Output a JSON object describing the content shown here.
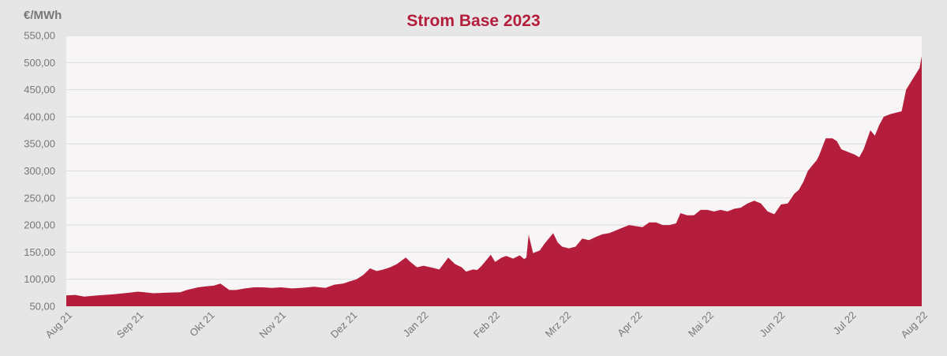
{
  "chart_data": {
    "type": "area",
    "title": "Strom Base 2023",
    "ylabel": "€/MWh",
    "ylim": [
      50,
      550
    ],
    "yticks": [
      50,
      100,
      150,
      200,
      250,
      300,
      350,
      400,
      450,
      500,
      550
    ],
    "ytick_labels": [
      "50,00",
      "100,00",
      "150,00",
      "200,00",
      "250,00",
      "300,00",
      "350,00",
      "400,00",
      "450,00",
      "500,00",
      "550,00"
    ],
    "xticks": [
      "Aug 21",
      "Sep 21",
      "Okt 21",
      "Nov 21",
      "Dez 21",
      "Jan 22",
      "Feb 22",
      "Mrz 22",
      "Apr 22",
      "Mai 22",
      "Jun 22",
      "Jul 22",
      "Aug 22"
    ],
    "grid": true,
    "colors": {
      "fill": "#b41e3c",
      "plot_bg": "#f7f5f6",
      "page_bg": "#e6e6e6",
      "grid": "#dddddd"
    },
    "series": [
      {
        "x": [
          "2021-08-01",
          "2021-08-05",
          "2021-08-09",
          "2021-08-15",
          "2021-08-22",
          "2021-08-29",
          "2021-09-02",
          "2021-09-05",
          "2021-09-09",
          "2021-09-14",
          "2021-09-21",
          "2021-09-24",
          "2021-09-29",
          "2021-10-03",
          "2021-10-06",
          "2021-10-09",
          "2021-10-13",
          "2021-10-16",
          "2021-10-20",
          "2021-10-24",
          "2021-10-28",
          "2021-11-01",
          "2021-11-05",
          "2021-11-10",
          "2021-11-14",
          "2021-11-20",
          "2021-11-25",
          "2021-11-29",
          "2021-12-03",
          "2021-12-06",
          "2021-12-09",
          "2021-12-12",
          "2021-12-15",
          "2021-12-18",
          "2021-12-21",
          "2021-12-24",
          "2021-12-27",
          "2021-12-31",
          "2022-01-02",
          "2022-01-05",
          "2022-01-08",
          "2022-01-12",
          "2022-01-15",
          "2022-01-19",
          "2022-01-22",
          "2022-01-25",
          "2022-01-27",
          "2022-01-30",
          "2022-02-01",
          "2022-02-03",
          "2022-02-05",
          "2022-02-07",
          "2022-02-09",
          "2022-02-12",
          "2022-02-14",
          "2022-02-17",
          "2022-02-20",
          "2022-02-22",
          "2022-02-23",
          "2022-02-24",
          "2022-02-26",
          "2022-03-01",
          "2022-03-03",
          "2022-03-05",
          "2022-03-07",
          "2022-03-09",
          "2022-03-11",
          "2022-03-14",
          "2022-03-17",
          "2022-03-20",
          "2022-03-23",
          "2022-03-26",
          "2022-03-29",
          "2022-04-01",
          "2022-04-04",
          "2022-04-07",
          "2022-04-10",
          "2022-04-13",
          "2022-04-16",
          "2022-04-19",
          "2022-04-22",
          "2022-04-25",
          "2022-04-28",
          "2022-05-01",
          "2022-05-03",
          "2022-05-06",
          "2022-05-09",
          "2022-05-12",
          "2022-05-15",
          "2022-05-18",
          "2022-05-21",
          "2022-05-24",
          "2022-05-27",
          "2022-05-30",
          "2022-06-02",
          "2022-06-05",
          "2022-06-08",
          "2022-06-11",
          "2022-06-14",
          "2022-06-17",
          "2022-06-20",
          "2022-06-23",
          "2022-06-25",
          "2022-06-27",
          "2022-06-29",
          "2022-07-01",
          "2022-07-03",
          "2022-07-04",
          "2022-07-07",
          "2022-07-10",
          "2022-07-12",
          "2022-07-14",
          "2022-07-17",
          "2022-07-20",
          "2022-07-22",
          "2022-07-24",
          "2022-07-27",
          "2022-07-29",
          "2022-07-31",
          "2022-08-02",
          "2022-08-05",
          "2022-08-08",
          "2022-08-10",
          "2022-08-12",
          "2022-08-15",
          "2022-08-18",
          "2022-08-19"
        ],
        "values": [
          70,
          71,
          68,
          70,
          72,
          75,
          77,
          76,
          74,
          75,
          76,
          80,
          85,
          87,
          88,
          92,
          80,
          80,
          83,
          85,
          85,
          84,
          85,
          83,
          84,
          86,
          84,
          90,
          92,
          96,
          100,
          108,
          120,
          115,
          118,
          122,
          128,
          140,
          132,
          122,
          125,
          121,
          118,
          140,
          128,
          122,
          114,
          118,
          117,
          125,
          135,
          145,
          132,
          140,
          143,
          138,
          144,
          137,
          140,
          182,
          148,
          153,
          165,
          175,
          185,
          168,
          160,
          157,
          160,
          175,
          172,
          178,
          183,
          185,
          190,
          195,
          200,
          198,
          196,
          205,
          205,
          200,
          200,
          203,
          222,
          218,
          218,
          228,
          228,
          225,
          228,
          225,
          230,
          232,
          240,
          245,
          240,
          225,
          220,
          238,
          240,
          258,
          265,
          280,
          300,
          310,
          320,
          328,
          360,
          360,
          355,
          340,
          335,
          330,
          325,
          340,
          375,
          365,
          385,
          400,
          405,
          408,
          410,
          450,
          470,
          490,
          512
        ]
      }
    ]
  }
}
